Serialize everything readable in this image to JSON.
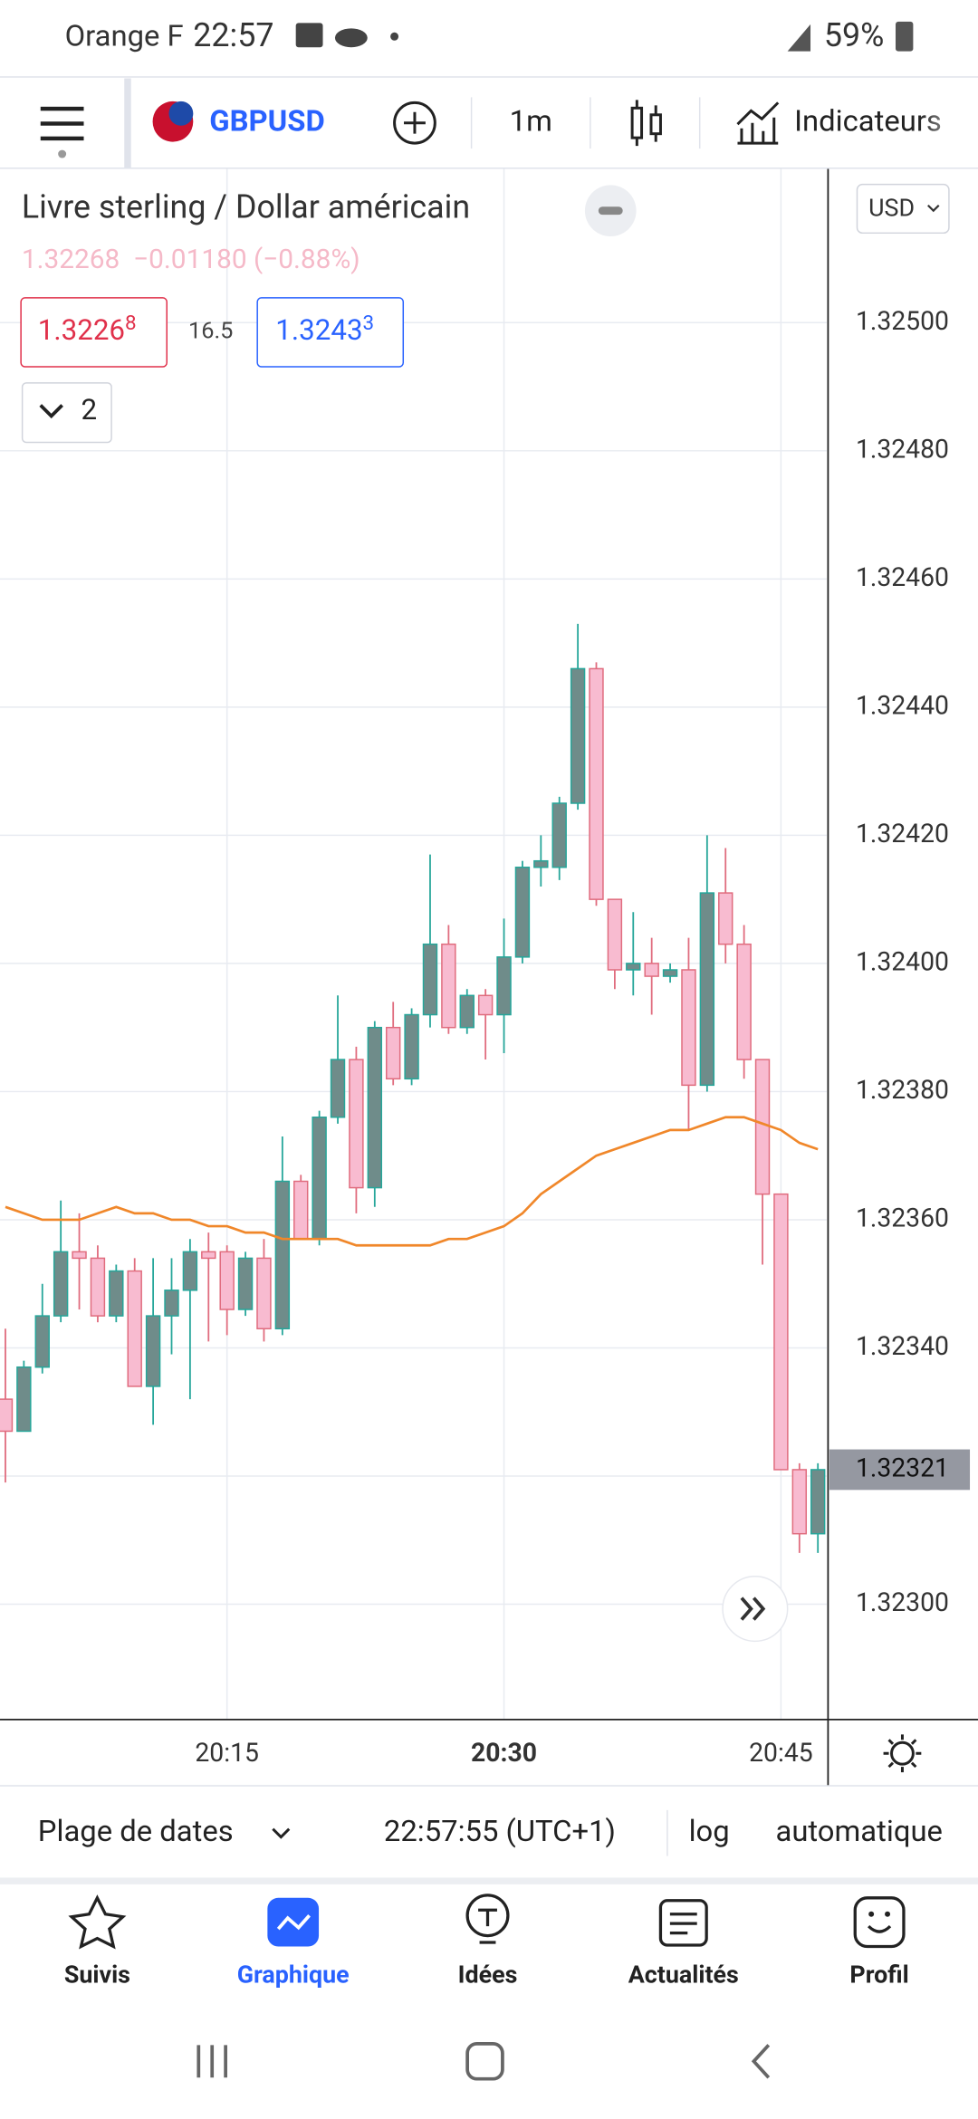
{
  "status_bar": {
    "carrier": "Orange F",
    "time": "22:57",
    "battery": "59%"
  },
  "toolbar": {
    "symbol": "GBPUSD",
    "interval": "1m",
    "indicators": "Indicateurs"
  },
  "chart_data": {
    "type": "candlestick",
    "title": "Livre sterling / Dollar américain",
    "quote": "1.32268  −0.01180 (−0.88%)",
    "currency": "USD",
    "bid": {
      "main": "1.3226",
      "pip": "8"
    },
    "spread": "16.5",
    "ask": {
      "main": "1.3243",
      "pip": "3"
    },
    "collapsed_count": 2,
    "categories": [
      null,
      null,
      null,
      null,
      null,
      null,
      null,
      null,
      null,
      null,
      null,
      null,
      "20:15",
      null,
      null,
      null,
      null,
      null,
      null,
      null,
      null,
      null,
      null,
      null,
      null,
      null,
      null,
      "20:30",
      null,
      null,
      null,
      null,
      null,
      null,
      null,
      null,
      null,
      null,
      null,
      null,
      null,
      null,
      "20:45",
      null,
      null
    ],
    "open": [
      1.32332,
      1.32327,
      1.32337,
      1.32345,
      1.32355,
      1.32354,
      1.32345,
      1.32352,
      1.32334,
      1.32345,
      1.32349,
      1.32355,
      1.32355,
      1.32346,
      1.32354,
      1.32343,
      1.32366,
      1.32357,
      1.32376,
      1.32385,
      1.32365,
      1.3239,
      1.32382,
      1.32392,
      1.32403,
      1.3239,
      1.32395,
      1.32392,
      1.32401,
      1.32415,
      1.32415,
      1.32425,
      1.32446,
      1.3241,
      1.32399,
      1.324,
      1.32398,
      1.32399,
      1.32381,
      1.32411,
      1.32403,
      1.32385,
      1.32364,
      1.32321,
      1.32311
    ],
    "high": [
      1.32343,
      1.32338,
      1.3235,
      1.32363,
      1.32361,
      1.32356,
      1.32353,
      1.32354,
      1.32354,
      1.32354,
      1.32357,
      1.32358,
      1.32356,
      1.32355,
      1.32357,
      1.32373,
      1.32367,
      1.32377,
      1.32395,
      1.32387,
      1.32391,
      1.32394,
      1.32393,
      1.32417,
      1.32406,
      1.32396,
      1.32396,
      1.32407,
      1.32416,
      1.3242,
      1.32426,
      1.32453,
      1.32447,
      1.3241,
      1.32408,
      1.32404,
      1.324,
      1.32404,
      1.3242,
      1.32418,
      1.32406,
      1.32385,
      1.32364,
      1.32322,
      1.32322
    ],
    "low": [
      1.32319,
      1.32327,
      1.32336,
      1.32344,
      1.32346,
      1.32344,
      1.32344,
      1.32334,
      1.32328,
      1.32339,
      1.32332,
      1.32341,
      1.32342,
      1.32345,
      1.32341,
      1.32342,
      1.32357,
      1.32356,
      1.32375,
      1.32361,
      1.32362,
      1.32381,
      1.32381,
      1.3239,
      1.32389,
      1.32389,
      1.32385,
      1.32386,
      1.324,
      1.32412,
      1.32413,
      1.32424,
      1.32409,
      1.32396,
      1.32395,
      1.32392,
      1.32397,
      1.32374,
      1.3238,
      1.324,
      1.32382,
      1.32353,
      1.32321,
      1.32308,
      1.32308
    ],
    "close": [
      1.32327,
      1.32337,
      1.32345,
      1.32355,
      1.32354,
      1.32345,
      1.32352,
      1.32334,
      1.32345,
      1.32349,
      1.32355,
      1.32354,
      1.32346,
      1.32354,
      1.32343,
      1.32366,
      1.32357,
      1.32376,
      1.32385,
      1.32365,
      1.3239,
      1.32382,
      1.32392,
      1.32403,
      1.3239,
      1.32395,
      1.32392,
      1.32401,
      1.32415,
      1.32416,
      1.32425,
      1.32446,
      1.3241,
      1.32399,
      1.324,
      1.32398,
      1.32399,
      1.32381,
      1.32411,
      1.32403,
      1.32385,
      1.32364,
      1.32321,
      1.32311,
      1.32321
    ],
    "up_color": "#6f8c8a",
    "up_border": "#26a69a",
    "down_color": "#f8bbd0",
    "down_border": "#e06c7e",
    "ma": {
      "color": "#f0872a",
      "values": [
        1.32362,
        1.32361,
        1.3236,
        1.3236,
        1.3236,
        1.32361,
        1.32362,
        1.32361,
        1.32361,
        1.3236,
        1.3236,
        1.32359,
        1.32359,
        1.32358,
        1.32358,
        1.32357,
        1.32357,
        1.32357,
        1.32357,
        1.32356,
        1.32356,
        1.32356,
        1.32356,
        1.32356,
        1.32357,
        1.32357,
        1.32358,
        1.32359,
        1.32361,
        1.32364,
        1.32366,
        1.32368,
        1.3237,
        1.32371,
        1.32372,
        1.32373,
        1.32374,
        1.32374,
        1.32375,
        1.32376,
        1.32376,
        1.32375,
        1.32374,
        1.32372,
        1.32371
      ]
    },
    "ylim": [
      1.32282,
      1.32524
    ],
    "yticks": [
      {
        "value": 1.323,
        "label": "1.32300"
      },
      {
        "value": 1.3232,
        "label": "1.32320"
      },
      {
        "value": 1.3234,
        "label": "1.32340"
      },
      {
        "value": 1.3236,
        "label": "1.32360"
      },
      {
        "value": 1.3238,
        "label": "1.32380"
      },
      {
        "value": 1.324,
        "label": "1.32400"
      },
      {
        "value": 1.3242,
        "label": "1.32420"
      },
      {
        "value": 1.3244,
        "label": "1.32440"
      },
      {
        "value": 1.3246,
        "label": "1.32460"
      },
      {
        "value": 1.3248,
        "label": "1.32480"
      },
      {
        "value": 1.325,
        "label": "1.32500"
      }
    ],
    "hidden_tick_labels": [
      1.3232
    ],
    "last_price": 1.32321,
    "grid": true
  },
  "bottom_bar": {
    "date_range": "Plage de dates",
    "clock": "22:57:55 (UTC+1)",
    "log": "log",
    "auto": "automatique"
  },
  "nav": [
    "Suivis",
    "Graphique",
    "Idées",
    "Actualités",
    "Profil"
  ]
}
